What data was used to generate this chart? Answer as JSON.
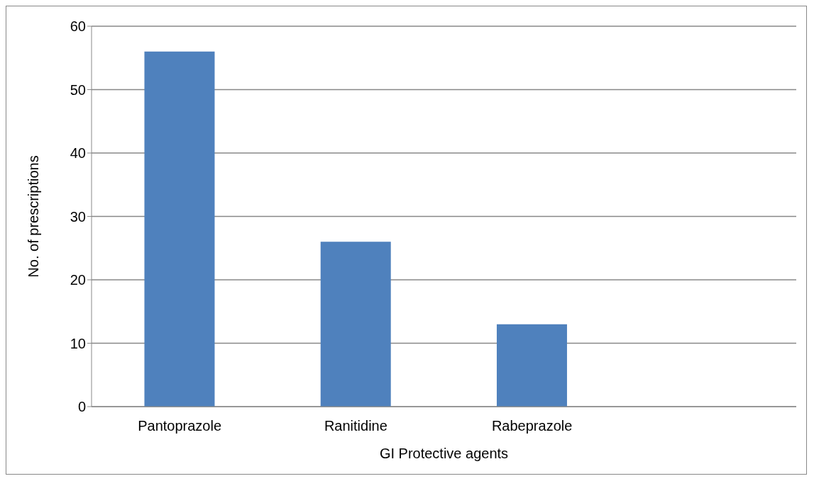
{
  "chart_data": {
    "type": "bar",
    "xlabel": "GI Protective agents",
    "ylabel": "No. of prescriptions",
    "categories": [
      "Pantoprazole",
      "Ranitidine",
      "Rabeprazole",
      null
    ],
    "values": [
      56,
      26,
      13,
      null
    ],
    "color": "#4f81bd",
    "ylim": [
      0,
      60
    ],
    "yticks": [
      0,
      10,
      20,
      30,
      40,
      50,
      60
    ],
    "grid": "y"
  }
}
